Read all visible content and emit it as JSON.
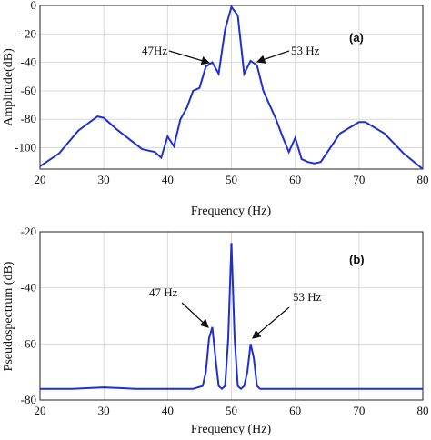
{
  "colors": {
    "series": "#1f2fd0",
    "grid": "#d9d9d9",
    "axis": "#222222"
  },
  "chart_data": [
    {
      "type": "line",
      "panel_label": "(a)",
      "xlabel": "Frequency (Hz)",
      "ylabel": "Amplitude(dB)",
      "xlim": [
        20,
        80
      ],
      "ylim": [
        -115,
        0
      ],
      "xticks": [
        20,
        30,
        40,
        50,
        60,
        70,
        80
      ],
      "yticks": [
        0,
        -20,
        -40,
        -60,
        -80,
        -100
      ],
      "grid": true,
      "series": [
        {
          "x": [
            20,
            23,
            26,
            29,
            30,
            32,
            36,
            38,
            39,
            40,
            41,
            42,
            43,
            44,
            45,
            46,
            47,
            48,
            49,
            50,
            51,
            52,
            53,
            54,
            55,
            56,
            57,
            58,
            59,
            60,
            61,
            62,
            63,
            64,
            67,
            70,
            71,
            74,
            77,
            80
          ],
          "y": [
            -113,
            -104,
            -88,
            -78,
            -79,
            -87,
            -101,
            -103,
            -107,
            -92,
            -99,
            -80,
            -72,
            -60,
            -58,
            -43,
            -40,
            -48,
            -17,
            -1,
            -7,
            -48,
            -39,
            -42,
            -60,
            -70,
            -80,
            -92,
            -103,
            -93,
            -108,
            -110,
            -111,
            -110,
            -90,
            -82,
            -82,
            -90,
            -104,
            -115
          ]
        }
      ],
      "annotations": [
        {
          "text": "47Hz",
          "x": 47,
          "y": -40
        },
        {
          "text": "53 Hz",
          "x": 53,
          "y": -40
        }
      ]
    },
    {
      "type": "line",
      "panel_label": "(b)",
      "xlabel": "Frequency (Hz)",
      "ylabel": "Pseudospectrum (dB)",
      "xlim": [
        20,
        80
      ],
      "ylim": [
        -80,
        -20
      ],
      "xticks": [
        20,
        30,
        40,
        50,
        60,
        70,
        80
      ],
      "yticks": [
        -20,
        -40,
        -60,
        -80
      ],
      "grid": true,
      "series": [
        {
          "x": [
            20,
            25,
            30,
            35,
            40,
            44,
            45.5,
            46,
            46.5,
            47,
            47.5,
            48,
            48.5,
            49,
            49.5,
            50,
            50.5,
            51,
            51.5,
            52,
            52.5,
            53,
            53.5,
            54,
            54.5,
            56,
            60,
            70,
            80
          ],
          "y": [
            -76,
            -76,
            -75.5,
            -76,
            -76,
            -76,
            -75,
            -70,
            -58,
            -54,
            -65,
            -75,
            -76,
            -75,
            -58,
            -24,
            -58,
            -75,
            -76,
            -75,
            -70,
            -60,
            -65,
            -75,
            -76,
            -76,
            -76,
            -76,
            -76
          ]
        }
      ],
      "annotations": [
        {
          "text": "47 Hz",
          "x": 47,
          "y": -54
        },
        {
          "text": "53 Hz",
          "x": 53,
          "y": -60
        }
      ]
    }
  ]
}
